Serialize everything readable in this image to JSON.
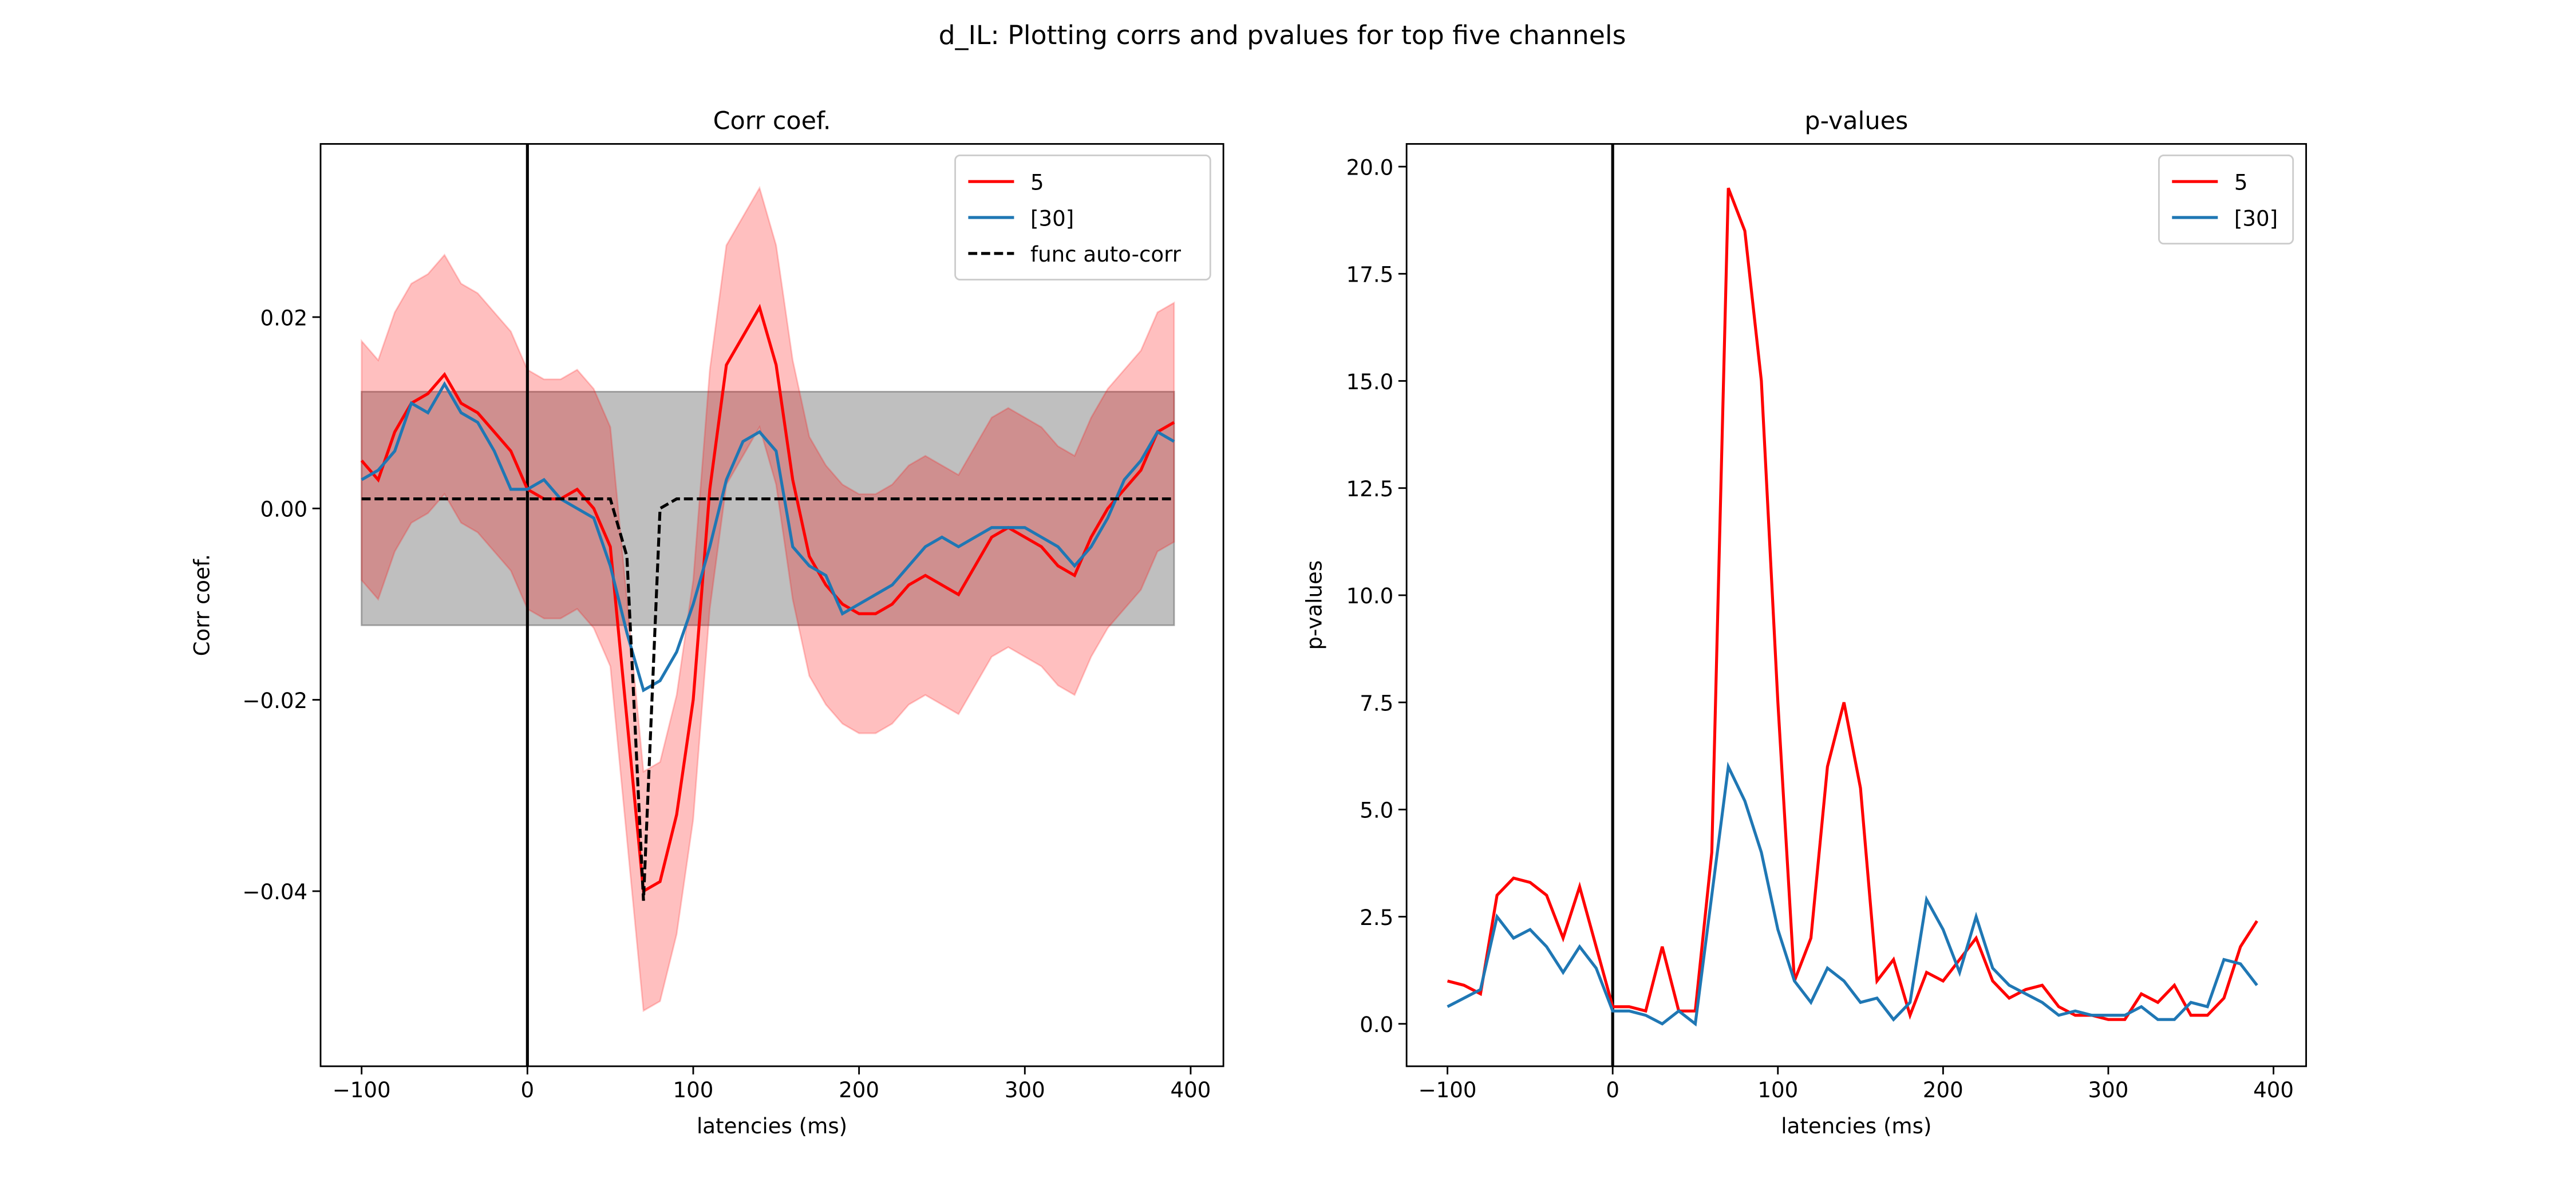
{
  "title": "d_IL: Plotting corrs and pvalues for top five channels",
  "chart_data": [
    {
      "type": "line",
      "title": "Corr coef.",
      "xlabel": "latencies (ms)",
      "ylabel": "Corr coef.",
      "x": [
        -100,
        -90,
        -80,
        -70,
        -60,
        -50,
        -40,
        -30,
        -20,
        -10,
        0,
        10,
        20,
        30,
        40,
        50,
        60,
        70,
        80,
        90,
        100,
        110,
        120,
        130,
        140,
        150,
        160,
        170,
        180,
        190,
        200,
        210,
        220,
        230,
        240,
        250,
        260,
        270,
        280,
        290,
        300,
        310,
        320,
        330,
        340,
        350,
        360,
        370,
        380,
        390
      ],
      "xlim": [
        -124.75,
        419.75
      ],
      "xticks": [
        {
          "value": -100,
          "label": "−100"
        },
        0,
        100,
        200,
        300,
        400
      ],
      "ylim": [
        -0.0583,
        0.0381
      ],
      "yticks": [
        {
          "value": 0.02,
          "label": "0.02"
        },
        {
          "value": 0,
          "label": "0.00"
        },
        {
          "value": -0.02,
          "label": "−0.02"
        },
        {
          "value": -0.04,
          "label": "−0.04"
        }
      ],
      "vline": 0,
      "legend": "upper right",
      "shaded_region": {
        "color": "#808080",
        "lower": -0.0122,
        "upper": 0.0122
      },
      "series": [
        {
          "name": "5",
          "color": "#ff0000",
          "band": 0.0125,
          "values": [
            0.005,
            0.003,
            0.008,
            0.011,
            0.012,
            0.014,
            0.011,
            0.01,
            0.008,
            0.006,
            0.002,
            0.001,
            0.001,
            0.002,
            0.0,
            -0.004,
            -0.022,
            -0.04,
            -0.039,
            -0.032,
            -0.02,
            0.002,
            0.015,
            0.018,
            0.021,
            0.015,
            0.003,
            -0.005,
            -0.008,
            -0.01,
            -0.011,
            -0.011,
            -0.01,
            -0.008,
            -0.007,
            -0.008,
            -0.009,
            -0.006,
            -0.003,
            -0.002,
            -0.003,
            -0.004,
            -0.006,
            -0.007,
            -0.003,
            0.0,
            0.002,
            0.004,
            0.008,
            0.009
          ]
        },
        {
          "name": "[30]",
          "color": "#1f77b4",
          "values": [
            0.003,
            0.004,
            0.006,
            0.011,
            0.01,
            0.013,
            0.01,
            0.009,
            0.006,
            0.002,
            0.002,
            0.003,
            0.001,
            0.0,
            -0.001,
            -0.006,
            -0.013,
            -0.019,
            -0.018,
            -0.015,
            -0.01,
            -0.004,
            0.003,
            0.007,
            0.008,
            0.006,
            -0.004,
            -0.006,
            -0.007,
            -0.011,
            -0.01,
            -0.009,
            -0.008,
            -0.006,
            -0.004,
            -0.003,
            -0.004,
            -0.003,
            -0.002,
            -0.002,
            -0.002,
            -0.003,
            -0.004,
            -0.006,
            -0.004,
            -0.001,
            0.003,
            0.005,
            0.008,
            0.007
          ]
        },
        {
          "name": "func auto-corr",
          "color": "#000000",
          "dashed": true,
          "values": [
            0.001,
            0.001,
            0.001,
            0.001,
            0.001,
            0.001,
            0.001,
            0.001,
            0.001,
            0.001,
            0.001,
            0.001,
            0.001,
            0.001,
            0.001,
            0.001,
            -0.005,
            -0.041,
            0.0,
            0.001,
            0.001,
            0.001,
            0.001,
            0.001,
            0.001,
            0.001,
            0.001,
            0.001,
            0.001,
            0.001,
            0.001,
            0.001,
            0.001,
            0.001,
            0.001,
            0.001,
            0.001,
            0.001,
            0.001,
            0.001,
            0.001,
            0.001,
            0.001,
            0.001,
            0.001,
            0.001,
            0.001,
            0.001,
            0.001,
            0.001
          ]
        }
      ]
    },
    {
      "type": "line",
      "title": "p-values",
      "xlabel": "latencies (ms)",
      "ylabel": "p-values",
      "x": [
        -100,
        -90,
        -80,
        -70,
        -60,
        -50,
        -40,
        -30,
        -20,
        -10,
        0,
        10,
        20,
        30,
        40,
        50,
        60,
        70,
        80,
        90,
        100,
        110,
        120,
        130,
        140,
        150,
        160,
        170,
        180,
        190,
        200,
        210,
        220,
        230,
        240,
        250,
        260,
        270,
        280,
        290,
        300,
        310,
        320,
        330,
        340,
        350,
        360,
        370,
        380,
        390
      ],
      "xlim": [
        -124.75,
        419.75
      ],
      "xticks": [
        {
          "value": -100,
          "label": "−100"
        },
        0,
        100,
        200,
        300,
        400
      ],
      "ylim": [
        -0.99,
        20.53
      ],
      "yticks": [
        {
          "value": 0,
          "label": "0.0"
        },
        2.5,
        {
          "value": 5,
          "label": "5.0"
        },
        7.5,
        {
          "value": 10,
          "label": "10.0"
        },
        12.5,
        {
          "value": 15,
          "label": "15.0"
        },
        17.5,
        {
          "value": 20,
          "label": "20.0"
        }
      ],
      "vline": 0,
      "legend": "upper right",
      "series": [
        {
          "name": "5",
          "color": "#ff0000",
          "values": [
            1.0,
            0.9,
            0.7,
            3.0,
            3.4,
            3.3,
            3.0,
            2.0,
            3.2,
            1.8,
            0.4,
            0.4,
            0.3,
            1.8,
            0.3,
            0.3,
            4.0,
            19.5,
            18.5,
            15.0,
            7.5,
            1.0,
            2.0,
            6.0,
            7.5,
            5.5,
            1.0,
            1.5,
            0.2,
            1.2,
            1.0,
            1.5,
            2.0,
            1.0,
            0.6,
            0.8,
            0.9,
            0.4,
            0.2,
            0.2,
            0.1,
            0.1,
            0.7,
            0.5,
            0.9,
            0.2,
            0.2,
            0.6,
            1.8,
            2.4
          ]
        },
        {
          "name": "[30]",
          "color": "#1f77b4",
          "values": [
            0.4,
            0.6,
            0.8,
            2.5,
            2.0,
            2.2,
            1.8,
            1.2,
            1.8,
            1.3,
            0.3,
            0.3,
            0.2,
            0.0,
            0.3,
            0.0,
            3.0,
            6.0,
            5.2,
            4.0,
            2.2,
            1.0,
            0.5,
            1.3,
            1.0,
            0.5,
            0.6,
            0.1,
            0.5,
            2.9,
            2.2,
            1.2,
            2.5,
            1.3,
            0.9,
            0.7,
            0.5,
            0.2,
            0.3,
            0.2,
            0.2,
            0.2,
            0.4,
            0.1,
            0.1,
            0.5,
            0.4,
            1.5,
            1.4,
            0.9
          ]
        }
      ]
    }
  ]
}
